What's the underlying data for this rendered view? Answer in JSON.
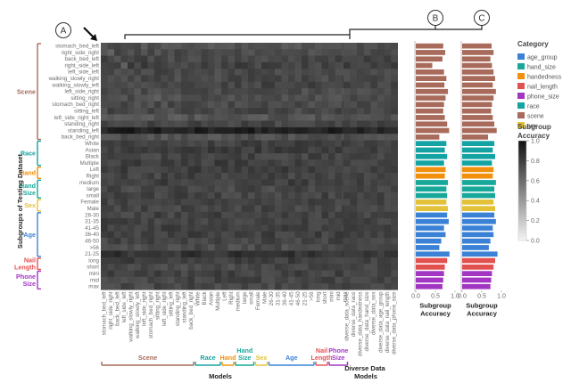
{
  "colors": {
    "age_group": "#3b82d6",
    "hand_size": "#17a89a",
    "handedness": "#f0900c",
    "nail_length": "#e25050",
    "phone_size": "#a235c2",
    "race": "#14a3a3",
    "scene": "#a86a5a",
    "sex": "#e3c23a"
  },
  "markers": {
    "a": "A",
    "b": "B",
    "c": "C"
  },
  "axis": {
    "y_title": "Subgroups of Testing Dataset",
    "x_title": "Models",
    "x_title_diverse": "Diverse Data\nModels",
    "bar_title": "Subgroup\nAccuracy"
  },
  "chart_data": {
    "type": "heatmap",
    "rows": [
      "stomach_bed_left",
      "right_side_right",
      "back_bed_left",
      "right_side_left",
      "left_side_left",
      "walking_slowly_right",
      "walking_slowly_left",
      "left_side_right",
      "sitting_right",
      "stomach_bed_right",
      "sitting_left",
      "left_side_right_left",
      "standing_right",
      "standing_left",
      "back_bed_right",
      "White",
      "Asian",
      "Black",
      "Multiple",
      "Left",
      "Right",
      "medium",
      "large",
      "small",
      "Female",
      "Male",
      "26-30",
      "31-35",
      "41-45",
      "36-40",
      "46-50",
      ">56",
      "21-25",
      "long",
      "short",
      "mini",
      "mid",
      "max"
    ],
    "row_groups": [
      {
        "label": "Scene",
        "key": "scene",
        "start": 0,
        "end": 14
      },
      {
        "label": "Race",
        "key": "race",
        "start": 15,
        "end": 18
      },
      {
        "label": "Hand",
        "key": "handedness",
        "start": 19,
        "end": 20
      },
      {
        "label": "Hand\nSize",
        "key": "hand_size",
        "start": 21,
        "end": 23
      },
      {
        "label": "Sex",
        "key": "sex",
        "start": 24,
        "end": 25
      },
      {
        "label": "Age",
        "key": "age_group",
        "start": 26,
        "end": 32
      },
      {
        "label": "Nail\nLength",
        "key": "nail_length",
        "start": 33,
        "end": 34
      },
      {
        "label": "Phone\nSize",
        "key": "phone_size",
        "start": 35,
        "end": 37
      }
    ],
    "columns": [
      "stomach_bed_left",
      "right_side_right",
      "back_bed_left",
      "left_side_left",
      "walking_slowly_right",
      "walking_slowly_left",
      "left_side_right",
      "stomach_bed_right",
      "sitting_right",
      "left_side_right",
      "sitting_left",
      "standing_right",
      "standing_left",
      "back_bed_right",
      "White",
      "Black",
      "Asian",
      "Multiple",
      "Left",
      "Right",
      "medium",
      "large",
      "small",
      "Female",
      "Male",
      "26-30",
      "31-35",
      "36-40",
      "41-45",
      "46-50",
      "21-25",
      ">56",
      "long",
      "short",
      "mini",
      "mid",
      "max"
    ],
    "col_groups": [
      {
        "label": "Scene",
        "key": "scene",
        "start": 0,
        "end": 13
      },
      {
        "label": "Race",
        "key": "race",
        "start": 14,
        "end": 17
      },
      {
        "label": "Hand",
        "key": "handedness",
        "start": 18,
        "end": 19
      },
      {
        "label": "Hand\nSize",
        "key": "hand_size",
        "start": 20,
        "end": 22
      },
      {
        "label": "Sex",
        "key": "sex",
        "start": 23,
        "end": 24
      },
      {
        "label": "Age",
        "key": "age_group",
        "start": 25,
        "end": 31
      },
      {
        "label": "Nail\nLength",
        "key": "nail_length",
        "start": 32,
        "end": 33
      },
      {
        "label": "Phone\nSize",
        "key": "phone_size",
        "start": 34,
        "end": 36
      }
    ],
    "diverse_columns": [
      "diverse_data_scene",
      "diverse_data_race",
      "diverse_data_handedness",
      "diverse_data_hand_size",
      "diverse_data_sex",
      "diverse_data_age_group",
      "diverse_data_nail_length",
      "diverse_data_phone_size"
    ],
    "row_base": [
      0.42,
      0.38,
      0.35,
      0.32,
      0.36,
      0.36,
      0.34,
      0.38,
      0.4,
      0.37,
      0.36,
      0.44,
      0.34,
      0.1,
      0.42,
      0.3,
      0.28,
      0.33,
      0.3,
      0.3,
      0.32,
      0.31,
      0.35,
      0.33,
      0.32,
      0.34,
      0.32,
      0.33,
      0.3,
      0.31,
      0.34,
      0.38,
      0.22,
      0.3,
      0.36,
      0.32,
      0.34,
      0.35
    ],
    "diverse_row_base": [
      0.4,
      0.36,
      0.32,
      0.3,
      0.38,
      0.36,
      0.34,
      0.38,
      0.38,
      0.36,
      0.35,
      0.4,
      0.32,
      0.14,
      0.4,
      0.32,
      0.3,
      0.34,
      0.32,
      0.32,
      0.33,
      0.32,
      0.34,
      0.33,
      0.33,
      0.34,
      0.33,
      0.33,
      0.32,
      0.33,
      0.34,
      0.36,
      0.26,
      0.32,
      0.34,
      0.33,
      0.34,
      0.34
    ],
    "accuracy_b": [
      0.7,
      0.75,
      0.68,
      0.42,
      0.72,
      0.78,
      0.73,
      0.82,
      0.76,
      0.72,
      0.7,
      0.74,
      0.8,
      0.85,
      0.6,
      0.78,
      0.74,
      0.8,
      0.72,
      0.76,
      0.74,
      0.82,
      0.78,
      0.8,
      0.78,
      0.82,
      0.8,
      0.84,
      0.72,
      0.76,
      0.65,
      0.6,
      0.86,
      0.8,
      0.74,
      0.72,
      0.7,
      0.68
    ],
    "accuracy_c": [
      0.75,
      0.8,
      0.72,
      0.76,
      0.8,
      0.84,
      0.78,
      0.86,
      0.8,
      0.76,
      0.74,
      0.78,
      0.82,
      0.88,
      0.66,
      0.82,
      0.78,
      0.84,
      0.76,
      0.8,
      0.78,
      0.86,
      0.82,
      0.84,
      0.8,
      0.84,
      0.82,
      0.86,
      0.78,
      0.8,
      0.72,
      0.68,
      0.9,
      0.84,
      0.8,
      0.76,
      0.74,
      0.72
    ],
    "bar_xlim": [
      0,
      1
    ],
    "bar_ticks": [
      "0.0",
      "0.5",
      "1.0"
    ],
    "colorbar": {
      "title": "Subgroup\nAccuracy",
      "range": [
        0.0,
        1.0
      ],
      "ticks": [
        "1.0",
        "0.8",
        "0.6",
        "0.4",
        "0.2",
        "0.0"
      ]
    },
    "legend": {
      "title": "Category",
      "items": [
        {
          "label": "age_group",
          "key": "age_group"
        },
        {
          "label": "hand_size",
          "key": "hand_size"
        },
        {
          "label": "handedness",
          "key": "handedness"
        },
        {
          "label": "nail_length",
          "key": "nail_length"
        },
        {
          "label": "phone_size",
          "key": "phone_size"
        },
        {
          "label": "race",
          "key": "race"
        },
        {
          "label": "scene",
          "key": "scene"
        },
        {
          "label": "sex",
          "key": "sex"
        }
      ]
    }
  }
}
